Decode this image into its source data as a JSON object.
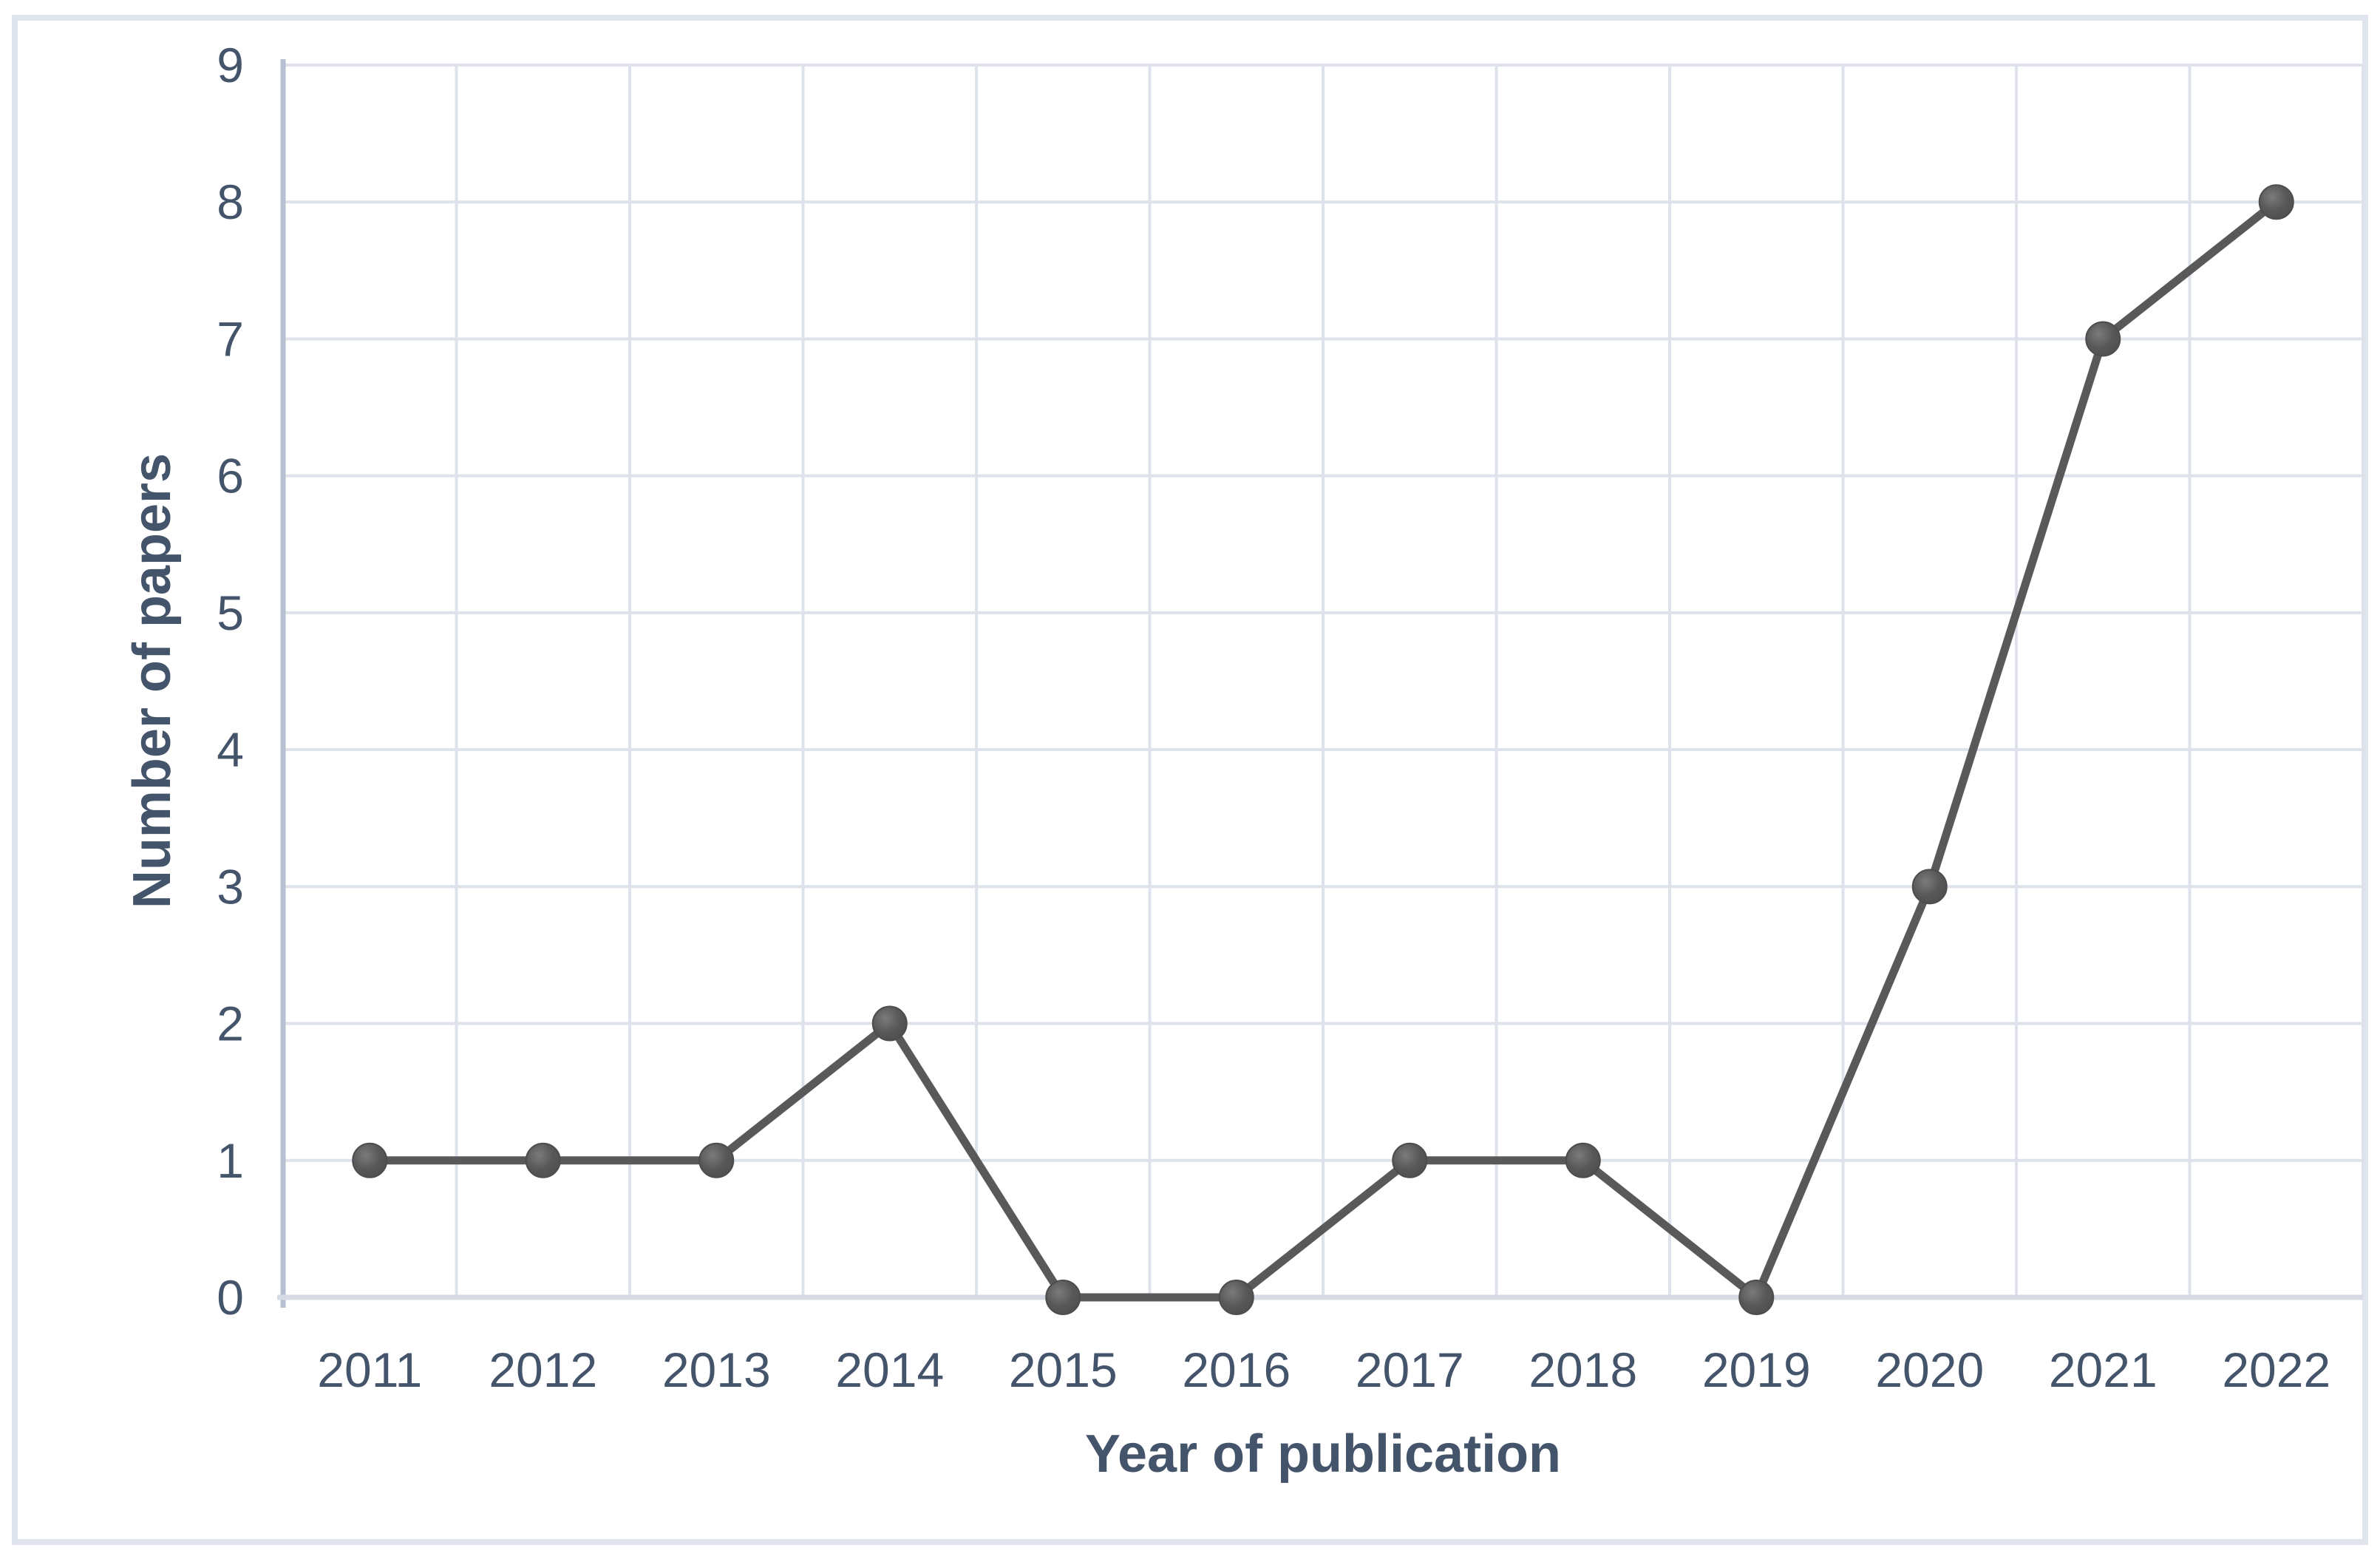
{
  "figure": {
    "background_color": "#ffffff",
    "border_color": "#e0e4ec"
  },
  "chart_data": {
    "type": "line",
    "title": "",
    "categories": [
      "2011",
      "2012",
      "2013",
      "2014",
      "2015",
      "2016",
      "2017",
      "2018",
      "2019",
      "2020",
      "2021",
      "2022"
    ],
    "series": [
      {
        "name": "Number of papers",
        "values": [
          1,
          1,
          1,
          2,
          0,
          0,
          1,
          1,
          0,
          3,
          7,
          8
        ]
      }
    ],
    "xlabel": "Year of publication",
    "ylabel": "Number of papers",
    "ylim": [
      0,
      9
    ],
    "yticks": [
      0,
      1,
      2,
      3,
      4,
      5,
      6,
      7,
      8,
      9
    ],
    "grid": true,
    "legend_position": "none",
    "marker": "circle",
    "colors": {
      "line": "#595959",
      "marker_fill_light": "#7b7b7b",
      "marker_fill": "#585858",
      "marker_fill_dark": "#4e4e4e",
      "marker_edge": "#4d4d4d",
      "axis_text": "#44546a",
      "axis_title_text": "#44546a",
      "gridline": "#dde2eb",
      "value_axis_line": "#b7c0d0",
      "category_axis_line": "#d5dae4"
    }
  }
}
